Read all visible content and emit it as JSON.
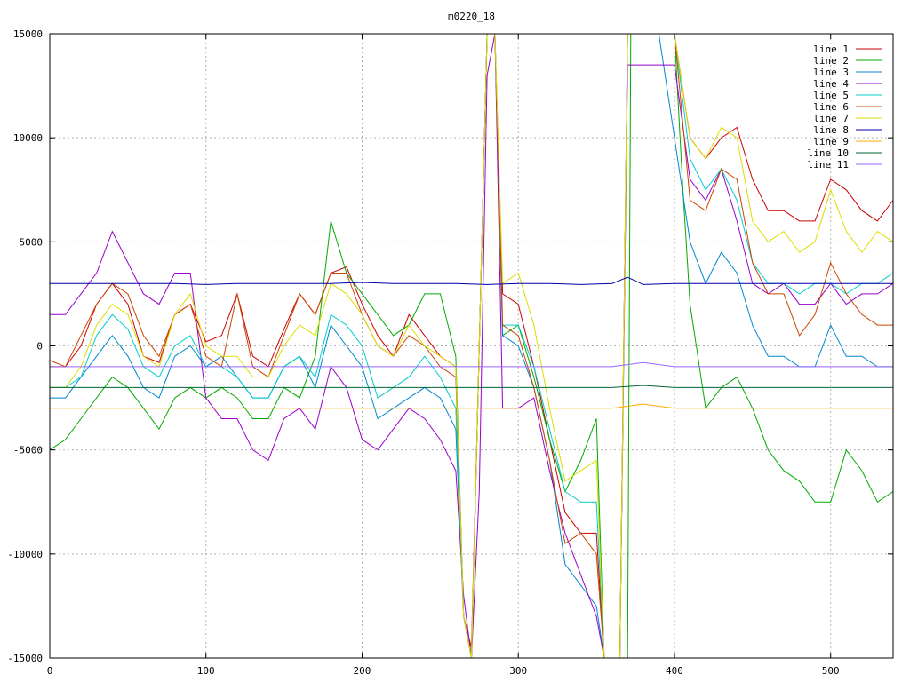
{
  "chart_data": {
    "type": "line",
    "title": "m0220_18",
    "xlabel": "",
    "ylabel": "",
    "xlim": [
      0,
      540
    ],
    "ylim": [
      -15000,
      15000
    ],
    "x_ticks": [
      0,
      100,
      200,
      300,
      400,
      500
    ],
    "y_ticks": [
      -15000,
      -10000,
      -5000,
      0,
      5000,
      10000,
      15000
    ],
    "grid": true,
    "legend_position": "top-right",
    "series": [
      {
        "name": "line 1",
        "color": "#cc0000",
        "x": [
          0,
          10,
          20,
          30,
          40,
          50,
          60,
          70,
          80,
          90,
          100,
          110,
          120,
          130,
          140,
          150,
          160,
          170,
          180,
          190,
          200,
          210,
          220,
          230,
          240,
          250,
          260,
          265,
          270,
          275,
          280,
          285,
          290,
          300,
          310,
          320,
          330,
          340,
          350,
          355,
          360,
          365,
          370,
          375,
          380,
          390,
          400,
          410,
          420,
          430,
          440,
          450,
          460,
          470,
          480,
          490,
          500,
          510,
          520,
          530,
          540
        ],
        "y": [
          -1000,
          -1000,
          0,
          2000,
          3000,
          2000,
          -500,
          -800,
          1500,
          2000,
          200,
          500,
          2500,
          -500,
          -1000,
          800,
          2500,
          1500,
          3500,
          3800,
          2000,
          500,
          -500,
          1500,
          500,
          -500,
          -1000,
          -13000,
          -14500,
          0,
          15000,
          15000,
          2500,
          2000,
          -1000,
          -4500,
          -8000,
          -9000,
          -9000,
          -15000,
          -15000,
          -15000,
          15000,
          15000,
          15000,
          15000,
          15000,
          10000,
          9000,
          10000,
          10500,
          8000,
          6500,
          6500,
          6000,
          6000,
          8000,
          7500,
          6500,
          6000,
          7000
        ]
      },
      {
        "name": "line 2",
        "color": "#00aa00",
        "x": [
          0,
          10,
          20,
          30,
          40,
          50,
          60,
          70,
          80,
          90,
          100,
          110,
          120,
          130,
          140,
          150,
          160,
          170,
          180,
          190,
          200,
          210,
          220,
          230,
          240,
          250,
          260,
          265,
          270,
          275,
          280,
          285,
          290,
          300,
          310,
          320,
          330,
          340,
          350,
          355,
          360,
          365,
          370,
          372,
          375,
          380,
          390,
          400,
          405,
          410,
          420,
          430,
          440,
          450,
          460,
          470,
          480,
          490,
          500,
          510,
          520,
          530,
          540
        ],
        "y": [
          -5000,
          -4500,
          -3500,
          -2500,
          -1500,
          -2000,
          -3000,
          -4000,
          -2500,
          -2000,
          -2500,
          -2000,
          -2500,
          -3500,
          -3500,
          -2000,
          -2500,
          -500,
          6000,
          3500,
          2500,
          1500,
          500,
          1000,
          2500,
          2500,
          -500,
          -13000,
          -15000,
          0,
          15000,
          15000,
          500,
          1000,
          -1500,
          -4500,
          -7000,
          -5500,
          -3500,
          -15000,
          -15000,
          -15000,
          -15000,
          15000,
          15000,
          15000,
          15000,
          15000,
          8000,
          2000,
          -3000,
          -2000,
          -1500,
          -3000,
          -5000,
          -6000,
          -6500,
          -7500,
          -7500,
          -5000,
          -6000,
          -7500,
          -7000
        ]
      },
      {
        "name": "line 3",
        "color": "#0088cc",
        "x": [
          0,
          10,
          20,
          30,
          40,
          50,
          60,
          70,
          80,
          90,
          100,
          110,
          120,
          130,
          140,
          150,
          160,
          170,
          180,
          190,
          200,
          210,
          220,
          230,
          240,
          250,
          260,
          265,
          270,
          275,
          280,
          285,
          290,
          300,
          310,
          320,
          330,
          340,
          350,
          355,
          360,
          365,
          370,
          375,
          380,
          390,
          400,
          410,
          420,
          430,
          440,
          450,
          460,
          470,
          480,
          490,
          500,
          510,
          520,
          530,
          540
        ],
        "y": [
          -2500,
          -2500,
          -1500,
          -500,
          500,
          -500,
          -2000,
          -2500,
          -500,
          0,
          -1000,
          -500,
          -1500,
          -2500,
          -2500,
          -1000,
          -500,
          -2000,
          1000,
          0,
          -1000,
          -3500,
          -3000,
          -2500,
          -2000,
          -2500,
          -4000,
          -13000,
          -15000,
          0,
          15000,
          15000,
          500,
          0,
          -2000,
          -5500,
          -10500,
          -11500,
          -12500,
          -15000,
          -15000,
          -15000,
          15000,
          15000,
          15000,
          15000,
          10000,
          5000,
          3000,
          4500,
          3500,
          1000,
          -500,
          -500,
          -1000,
          -1000,
          1000,
          -500,
          -500,
          -1000,
          -1000
        ]
      },
      {
        "name": "line 4",
        "color": "#9900cc",
        "x": [
          0,
          10,
          20,
          30,
          40,
          50,
          60,
          70,
          80,
          90,
          100,
          110,
          120,
          130,
          140,
          150,
          160,
          170,
          180,
          190,
          200,
          210,
          220,
          230,
          240,
          250,
          260,
          265,
          270,
          275,
          280,
          285,
          290,
          300,
          310,
          320,
          330,
          340,
          350,
          355,
          360,
          365,
          370,
          375,
          380,
          390,
          400,
          410,
          420,
          430,
          440,
          450,
          460,
          470,
          480,
          490,
          500,
          510,
          520,
          530,
          540
        ],
        "y": [
          1500,
          1500,
          2500,
          3500,
          5500,
          4000,
          2500,
          2000,
          3500,
          3500,
          -2500,
          -3500,
          -3500,
          -5000,
          -5500,
          -3500,
          -3000,
          -4000,
          -1000,
          -2000,
          -4500,
          -5000,
          -4000,
          -3000,
          -3500,
          -4500,
          -6000,
          -12000,
          -15000,
          -7000,
          13000,
          15000,
          -3000,
          -3000,
          -2500,
          -6000,
          -9000,
          -11000,
          -13000,
          -15000,
          -15000,
          -15000,
          13500,
          13500,
          13500,
          13500,
          13500,
          8000,
          7000,
          8500,
          6000,
          3000,
          2500,
          3000,
          2000,
          2000,
          3000,
          2000,
          2500,
          2500,
          3000
        ]
      },
      {
        "name": "line 5",
        "color": "#00cccc",
        "x": [
          0,
          10,
          20,
          30,
          40,
          50,
          60,
          70,
          80,
          90,
          100,
          110,
          120,
          130,
          140,
          150,
          160,
          170,
          180,
          190,
          200,
          210,
          220,
          230,
          240,
          250,
          260,
          265,
          270,
          275,
          280,
          285,
          290,
          300,
          310,
          320,
          330,
          340,
          350,
          355,
          360,
          365,
          370,
          375,
          380,
          390,
          400,
          410,
          420,
          430,
          440,
          450,
          460,
          470,
          480,
          490,
          500,
          510,
          520,
          530,
          540
        ],
        "y": [
          -2000,
          -2000,
          -1500,
          500,
          1500,
          800,
          -1000,
          -1500,
          0,
          500,
          -1000,
          -1000,
          -1500,
          -2500,
          -2500,
          -1000,
          -500,
          -1500,
          1500,
          1000,
          0,
          -2500,
          -2000,
          -1500,
          -500,
          -1500,
          -3000,
          -13000,
          -15000,
          0,
          15000,
          15000,
          1000,
          1000,
          -1000,
          -4000,
          -7000,
          -7500,
          -7500,
          -15000,
          -15000,
          -15000,
          15000,
          15000,
          15000,
          15000,
          15000,
          9000,
          7500,
          8500,
          7000,
          4000,
          3000,
          3000,
          2500,
          3000,
          3000,
          2500,
          3000,
          3000,
          3500
        ]
      },
      {
        "name": "line 6",
        "color": "#cc4400",
        "x": [
          0,
          10,
          20,
          30,
          40,
          50,
          60,
          70,
          80,
          90,
          100,
          110,
          120,
          130,
          140,
          150,
          160,
          170,
          180,
          190,
          200,
          210,
          220,
          230,
          240,
          250,
          260,
          265,
          270,
          275,
          280,
          285,
          290,
          300,
          310,
          320,
          330,
          340,
          350,
          355,
          360,
          365,
          370,
          375,
          380,
          390,
          400,
          410,
          420,
          430,
          440,
          450,
          460,
          470,
          480,
          490,
          500,
          510,
          520,
          530,
          540
        ],
        "y": [
          -700,
          -1000,
          500,
          2000,
          3000,
          2500,
          500,
          -500,
          1500,
          2000,
          -500,
          -1000,
          2500,
          -1000,
          -1500,
          500,
          2500,
          1500,
          3500,
          3500,
          1500,
          0,
          -500,
          500,
          0,
          -1000,
          -1500,
          -13000,
          -15000,
          0,
          15000,
          15000,
          1000,
          500,
          -2000,
          -5500,
          -9500,
          -9000,
          -10000,
          -15000,
          -15000,
          -15000,
          15000,
          15000,
          15000,
          15000,
          15000,
          7000,
          6500,
          8500,
          8000,
          4000,
          2500,
          2500,
          500,
          1500,
          4000,
          2500,
          1500,
          1000,
          1000
        ]
      },
      {
        "name": "line 7",
        "color": "#dddd00",
        "x": [
          0,
          10,
          20,
          30,
          40,
          50,
          60,
          70,
          80,
          90,
          100,
          110,
          120,
          130,
          140,
          150,
          160,
          170,
          180,
          190,
          200,
          210,
          220,
          230,
          240,
          250,
          260,
          265,
          270,
          275,
          280,
          285,
          290,
          300,
          310,
          320,
          330,
          340,
          350,
          355,
          360,
          365,
          370,
          375,
          380,
          390,
          400,
          410,
          420,
          430,
          440,
          450,
          460,
          470,
          480,
          490,
          500,
          510,
          520,
          530,
          540
        ],
        "y": [
          -2000,
          -2000,
          -1000,
          1000,
          2000,
          1500,
          -500,
          -1000,
          1500,
          2500,
          0,
          -500,
          -500,
          -1500,
          -1500,
          0,
          1000,
          500,
          3000,
          2500,
          1500,
          0,
          -500,
          1000,
          0,
          -500,
          -1000,
          -13000,
          -15000,
          0,
          15000,
          15000,
          3000,
          3500,
          1000,
          -3000,
          -6500,
          -6000,
          -5500,
          -15000,
          -15000,
          -15000,
          15000,
          15000,
          15000,
          15000,
          15000,
          10000,
          9000,
          10500,
          10000,
          6000,
          5000,
          5500,
          4500,
          5000,
          7500,
          5500,
          4500,
          5500,
          5000
        ]
      },
      {
        "name": "line 8",
        "color": "#0000aa",
        "x": [
          0,
          20,
          40,
          60,
          80,
          100,
          120,
          140,
          160,
          180,
          200,
          220,
          240,
          260,
          280,
          300,
          320,
          340,
          360,
          370,
          380,
          400,
          420,
          440,
          460,
          480,
          500,
          520,
          540
        ],
        "y": [
          3000,
          3000,
          3000,
          3000,
          3000,
          2950,
          3000,
          3000,
          3000,
          3000,
          3050,
          3000,
          3000,
          3000,
          2950,
          3000,
          3000,
          2950,
          3000,
          3300,
          2950,
          3000,
          3000,
          3000,
          3000,
          3000,
          3000,
          3000,
          3000
        ]
      },
      {
        "name": "line 9",
        "color": "#ffaa00",
        "x": [
          0,
          20,
          40,
          60,
          80,
          100,
          120,
          140,
          160,
          180,
          200,
          220,
          240,
          260,
          280,
          300,
          320,
          340,
          360,
          380,
          400,
          420,
          440,
          460,
          480,
          500,
          520,
          540
        ],
        "y": [
          -3000,
          -3000,
          -3000,
          -3000,
          -3000,
          -3000,
          -3000,
          -3000,
          -3000,
          -3000,
          -3000,
          -3000,
          -3000,
          -3000,
          -3000,
          -3000,
          -3000,
          -3000,
          -3000,
          -2800,
          -3000,
          -3000,
          -3000,
          -3000,
          -3000,
          -3000,
          -3000,
          -3000
        ]
      },
      {
        "name": "line 10",
        "color": "#006633",
        "x": [
          0,
          20,
          40,
          60,
          80,
          100,
          120,
          140,
          160,
          180,
          200,
          220,
          240,
          260,
          280,
          300,
          320,
          340,
          360,
          380,
          400,
          420,
          440,
          460,
          480,
          500,
          520,
          540
        ],
        "y": [
          -2000,
          -2000,
          -2000,
          -2000,
          -2000,
          -2000,
          -2000,
          -2000,
          -2000,
          -2000,
          -2000,
          -2000,
          -2000,
          -2000,
          -2000,
          -2000,
          -2000,
          -2000,
          -2000,
          -1900,
          -2000,
          -2000,
          -2000,
          -2000,
          -2000,
          -2000,
          -2000,
          -2000
        ]
      },
      {
        "name": "line 11",
        "color": "#9966ff",
        "x": [
          0,
          20,
          40,
          60,
          80,
          100,
          120,
          140,
          160,
          180,
          200,
          220,
          240,
          260,
          280,
          300,
          320,
          340,
          360,
          380,
          400,
          420,
          440,
          460,
          480,
          500,
          520,
          540
        ],
        "y": [
          -1000,
          -1000,
          -1000,
          -1000,
          -1000,
          -1000,
          -1000,
          -1000,
          -1000,
          -1000,
          -1000,
          -1000,
          -1000,
          -1000,
          -1000,
          -1000,
          -1000,
          -1000,
          -1000,
          -800,
          -1000,
          -1000,
          -1000,
          -1000,
          -1000,
          -1000,
          -1000,
          -1000
        ]
      }
    ]
  }
}
